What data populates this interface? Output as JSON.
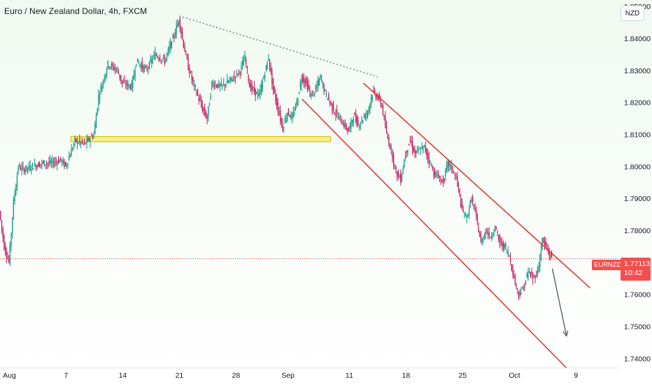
{
  "header": {
    "title": "Euro / New Zealand Dollar, 4h, FXCM",
    "currency_badge": "NZD"
  },
  "price_tag": {
    "symbol": "EURNZD",
    "price": "1.77113",
    "countdown": "10:42",
    "color": "#f24f4f"
  },
  "colors": {
    "up": "#089981",
    "down": "#c2185b",
    "candle_body": "#b2153e",
    "channel": "#e53935",
    "support_zone_fill": "#f6f08a",
    "support_zone_stroke": "#d4b400",
    "trendline_dotted": "#7a8a99",
    "arrow": "#455a64"
  },
  "chart_data": {
    "type": "candlestick",
    "symbol": "EURNZD",
    "timeframe": "4h",
    "yaxis": {
      "range": [
        1.737,
        1.852
      ],
      "ticks": [
        "1.85000",
        "1.84000",
        "1.83000",
        "1.82000",
        "1.81000",
        "1.80000",
        "1.79000",
        "1.78000",
        "1.77000",
        "1.76000",
        "1.75000",
        "1.74000"
      ],
      "tick_values": [
        1.85,
        1.84,
        1.83,
        1.82,
        1.81,
        1.8,
        1.79,
        1.78,
        1.77,
        1.76,
        1.75,
        1.74
      ]
    },
    "xaxis": {
      "range": [
        0,
        131
      ],
      "ticks": [
        "Aug",
        "7",
        "14",
        "21",
        "28",
        "Sep",
        "11",
        "18",
        "25",
        "Oct",
        "9"
      ],
      "tick_positions": [
        2,
        14,
        26,
        38,
        50,
        61,
        74,
        86,
        98,
        109,
        122
      ]
    },
    "last_price": 1.77113,
    "price_path": [
      [
        0,
        1.786
      ],
      [
        1,
        1.775
      ],
      [
        2,
        1.77
      ],
      [
        3,
        1.789
      ],
      [
        4,
        1.8
      ],
      [
        5,
        1.799
      ],
      [
        7,
        1.8
      ],
      [
        9,
        1.801
      ],
      [
        11,
        1.801
      ],
      [
        13,
        1.802
      ],
      [
        14,
        1.8
      ],
      [
        16,
        1.808
      ],
      [
        18,
        1.807
      ],
      [
        20,
        1.81
      ],
      [
        21,
        1.822
      ],
      [
        23,
        1.832
      ],
      [
        25,
        1.83
      ],
      [
        26,
        1.826
      ],
      [
        28,
        1.825
      ],
      [
        29,
        1.833
      ],
      [
        31,
        1.83
      ],
      [
        33,
        1.835
      ],
      [
        35,
        1.833
      ],
      [
        37,
        1.841
      ],
      [
        38,
        1.846
      ],
      [
        39,
        1.838
      ],
      [
        40,
        1.831
      ],
      [
        41,
        1.826
      ],
      [
        43,
        1.818
      ],
      [
        44,
        1.815
      ],
      [
        45,
        1.826
      ],
      [
        47,
        1.825
      ],
      [
        49,
        1.827
      ],
      [
        51,
        1.83
      ],
      [
        52,
        1.834
      ],
      [
        53,
        1.825
      ],
      [
        55,
        1.822
      ],
      [
        57,
        1.834
      ],
      [
        58,
        1.824
      ],
      [
        59,
        1.818
      ],
      [
        60,
        1.812
      ],
      [
        61,
        1.817
      ],
      [
        62,
        1.815
      ],
      [
        63,
        1.82
      ],
      [
        64,
        1.828
      ],
      [
        65,
        1.826
      ],
      [
        66,
        1.822
      ],
      [
        67,
        1.824
      ],
      [
        68,
        1.828
      ],
      [
        69,
        1.823
      ],
      [
        71,
        1.817
      ],
      [
        72,
        1.815
      ],
      [
        74,
        1.811
      ],
      [
        75,
        1.816
      ],
      [
        76,
        1.813
      ],
      [
        78,
        1.817
      ],
      [
        79,
        1.823
      ],
      [
        80,
        1.822
      ],
      [
        81,
        1.819
      ],
      [
        82,
        1.81
      ],
      [
        83,
        1.805
      ],
      [
        84,
        1.798
      ],
      [
        85,
        1.796
      ],
      [
        86,
        1.804
      ],
      [
        87,
        1.808
      ],
      [
        88,
        1.804
      ],
      [
        90,
        1.806
      ],
      [
        91,
        1.802
      ],
      [
        92,
        1.798
      ],
      [
        94,
        1.795
      ],
      [
        95,
        1.801
      ],
      [
        96,
        1.799
      ],
      [
        97,
        1.795
      ],
      [
        98,
        1.786
      ],
      [
        99,
        1.784
      ],
      [
        100,
        1.79
      ],
      [
        101,
        1.784
      ],
      [
        102,
        1.776
      ],
      [
        103,
        1.78
      ],
      [
        104,
        1.778
      ],
      [
        105,
        1.781
      ],
      [
        106,
        1.776
      ],
      [
        107,
        1.775
      ],
      [
        108,
        1.772
      ],
      [
        109,
        1.765
      ],
      [
        110,
        1.76
      ],
      [
        111,
        1.762
      ],
      [
        112,
        1.767
      ],
      [
        113,
        1.765
      ],
      [
        114,
        1.767
      ],
      [
        115,
        1.777
      ],
      [
        116,
        1.774
      ],
      [
        117,
        1.771
      ]
    ],
    "drawings": {
      "dotted_trendline": [
        [
          38,
          1.847
        ],
        [
          80,
          1.828
        ]
      ],
      "support_zone": {
        "x": [
          15,
          70
        ],
        "y": [
          1.8077,
          1.8093
        ]
      },
      "channel_upper": [
        [
          77,
          1.826
        ],
        [
          125,
          1.762
        ]
      ],
      "channel_lower": [
        [
          64,
          1.821
        ],
        [
          120,
          1.737
        ]
      ],
      "forecast_arrow": [
        [
          117,
          1.768
        ],
        [
          120,
          1.747
        ]
      ]
    }
  }
}
